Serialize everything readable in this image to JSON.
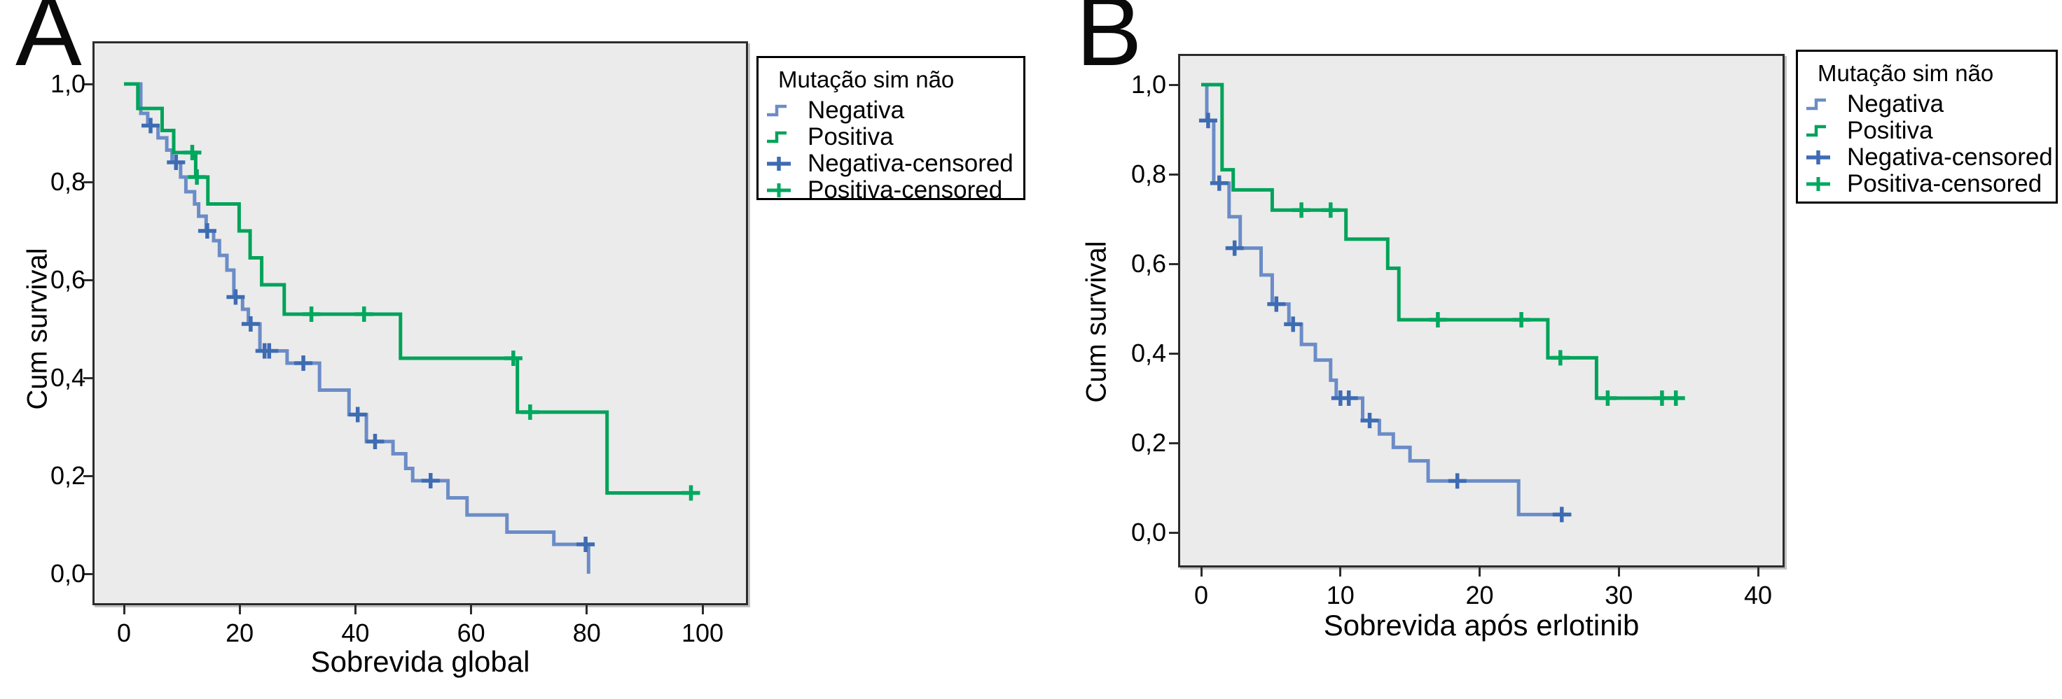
{
  "panels": [
    {
      "letter": "A",
      "ylabel": "Cum survival",
      "xlabel": "Sobrevida global",
      "legend": {
        "title": "Mutação sim não",
        "items": [
          "Negativa",
          "Positiva",
          "Negativa-censored",
          "Positiva-censored"
        ]
      }
    },
    {
      "letter": "B",
      "ylabel": "Cum survival",
      "xlabel": "Sobrevida após erlotinib",
      "legend": {
        "title": "Mutação sim não",
        "items": [
          "Negativa",
          "Positiva",
          "Negativa-censored",
          "Positiva-censored"
        ]
      }
    }
  ],
  "colors": {
    "negativa_line": "#6b8cc7",
    "negativa_censor": "#3e6cb3",
    "positiva_line": "#00a35a",
    "positiva_censor": "#00a85e",
    "plot_bg": "#ebebeb",
    "plot_border": "#2c2c2c"
  },
  "chart_data": [
    {
      "type": "line",
      "subtype": "kaplan_meier_step",
      "title": "A",
      "xlabel": "Sobrevida global",
      "ylabel": "Cum survival",
      "legend_title": "Mutação sim não",
      "legend_position": "outside-right",
      "grid": false,
      "xlim": [
        -5,
        107
      ],
      "ylim": [
        0,
        1.05
      ],
      "x_ticks": [
        0,
        20,
        40,
        60,
        80,
        100
      ],
      "x_tick_labels": [
        "0",
        "20",
        "40",
        "60",
        "80",
        "100"
      ],
      "y_ticks": [
        1.0,
        0.8,
        0.6,
        0.4,
        0.2,
        0.0
      ],
      "y_tick_labels": [
        "1,0",
        "0,8",
        "0,6",
        "0,4",
        "0,2",
        "0,0"
      ],
      "series": [
        {
          "name": "Negativa",
          "color": "#6b8cc7",
          "censor_color": "#3e6cb3",
          "steps": [
            [
              0,
              1.0
            ],
            [
              2.9,
              0.94
            ],
            [
              4.1,
              0.915
            ],
            [
              5.9,
              0.89
            ],
            [
              7.4,
              0.865
            ],
            [
              8.3,
              0.84
            ],
            [
              9.8,
              0.81
            ],
            [
              10.7,
              0.78
            ],
            [
              12.2,
              0.755
            ],
            [
              12.9,
              0.73
            ],
            [
              14.2,
              0.7
            ],
            [
              15.5,
              0.68
            ],
            [
              16.5,
              0.65
            ],
            [
              17.8,
              0.62
            ],
            [
              19.0,
              0.565
            ],
            [
              20.5,
              0.54
            ],
            [
              21.5,
              0.51
            ],
            [
              23.5,
              0.455
            ],
            [
              28.2,
              0.43
            ],
            [
              33.8,
              0.375
            ],
            [
              38.9,
              0.325
            ],
            [
              41.9,
              0.27
            ],
            [
              46.5,
              0.245
            ],
            [
              48.7,
              0.215
            ],
            [
              49.9,
              0.19
            ],
            [
              56.0,
              0.155
            ],
            [
              59.3,
              0.12
            ],
            [
              66.2,
              0.085
            ],
            [
              74.3,
              0.06
            ],
            [
              80.3,
              0.0
            ]
          ],
          "censors": [
            [
              4.6,
              0.915
            ],
            [
              9.0,
              0.84
            ],
            [
              14.4,
              0.7
            ],
            [
              19.3,
              0.565
            ],
            [
              21.9,
              0.51
            ],
            [
              24.3,
              0.455
            ],
            [
              25.1,
              0.455
            ],
            [
              31.0,
              0.43
            ],
            [
              40.4,
              0.325
            ],
            [
              43.4,
              0.27
            ],
            [
              53.0,
              0.19
            ],
            [
              79.8,
              0.06
            ]
          ],
          "end": 80.3
        },
        {
          "name": "Positiva",
          "color": "#00a35a",
          "censor_color": "#00a85e",
          "steps": [
            [
              0,
              1.0
            ],
            [
              2.4,
              0.95
            ],
            [
              6.6,
              0.905
            ],
            [
              8.6,
              0.86
            ],
            [
              12.4,
              0.81
            ],
            [
              14.5,
              0.755
            ],
            [
              19.9,
              0.7
            ],
            [
              21.8,
              0.645
            ],
            [
              23.8,
              0.59
            ],
            [
              27.7,
              0.53
            ],
            [
              47.8,
              0.44
            ],
            [
              68.0,
              0.33
            ],
            [
              83.5,
              0.165
            ]
          ],
          "censors": [
            [
              11.8,
              0.86
            ],
            [
              12.6,
              0.81
            ],
            [
              32.4,
              0.53
            ],
            [
              41.5,
              0.53
            ],
            [
              67.3,
              0.44
            ],
            [
              70.2,
              0.33
            ],
            [
              98.0,
              0.165
            ]
          ],
          "end": 99.0
        }
      ]
    },
    {
      "type": "line",
      "subtype": "kaplan_meier_step",
      "title": "B",
      "xlabel": "Sobrevida após erlotinib",
      "ylabel": "Cum survival",
      "legend_title": "Mutação sim não",
      "legend_position": "outside-right",
      "grid": false,
      "xlim": [
        -1.5,
        41.8
      ],
      "ylim": [
        0,
        1.05
      ],
      "x_ticks": [
        0,
        10,
        20,
        30,
        40
      ],
      "x_tick_labels": [
        "0",
        "10",
        "20",
        "30",
        "40"
      ],
      "y_ticks": [
        1.0,
        0.8,
        0.6,
        0.4,
        0.2,
        0.0
      ],
      "y_tick_labels": [
        "1,0",
        "0,8",
        "0,6",
        "0,4",
        "0,2",
        "0,0"
      ],
      "series": [
        {
          "name": "Negativa",
          "color": "#6b8cc7",
          "censor_color": "#3e6cb3",
          "steps": [
            [
              0,
              1.0
            ],
            [
              0.4,
              0.92
            ],
            [
              0.9,
              0.78
            ],
            [
              2.0,
              0.705
            ],
            [
              2.8,
              0.635
            ],
            [
              4.3,
              0.575
            ],
            [
              5.1,
              0.51
            ],
            [
              6.3,
              0.465
            ],
            [
              7.2,
              0.42
            ],
            [
              8.2,
              0.385
            ],
            [
              9.3,
              0.34
            ],
            [
              9.7,
              0.3
            ],
            [
              11.6,
              0.25
            ],
            [
              12.8,
              0.22
            ],
            [
              13.8,
              0.19
            ],
            [
              15.0,
              0.16
            ],
            [
              16.3,
              0.115
            ],
            [
              22.8,
              0.04
            ]
          ],
          "censors": [
            [
              0.5,
              0.92
            ],
            [
              1.3,
              0.78
            ],
            [
              2.4,
              0.635
            ],
            [
              5.4,
              0.51
            ],
            [
              6.6,
              0.465
            ],
            [
              10.0,
              0.3
            ],
            [
              10.6,
              0.3
            ],
            [
              12.1,
              0.25
            ],
            [
              18.4,
              0.115
            ],
            [
              25.9,
              0.04
            ]
          ],
          "end": 26.6
        },
        {
          "name": "Positiva",
          "color": "#00a35a",
          "censor_color": "#00a85e",
          "steps": [
            [
              0,
              1.0
            ],
            [
              1.5,
              0.81
            ],
            [
              2.3,
              0.765
            ],
            [
              5.1,
              0.72
            ],
            [
              10.4,
              0.655
            ],
            [
              13.4,
              0.59
            ],
            [
              14.2,
              0.475
            ],
            [
              24.9,
              0.39
            ],
            [
              28.4,
              0.3
            ]
          ],
          "censors": [
            [
              7.2,
              0.72
            ],
            [
              9.3,
              0.72
            ],
            [
              17.0,
              0.475
            ],
            [
              23.0,
              0.475
            ],
            [
              25.8,
              0.39
            ],
            [
              29.2,
              0.3
            ],
            [
              33.1,
              0.3
            ],
            [
              34.1,
              0.3
            ]
          ],
          "end": 34.6
        }
      ]
    }
  ]
}
